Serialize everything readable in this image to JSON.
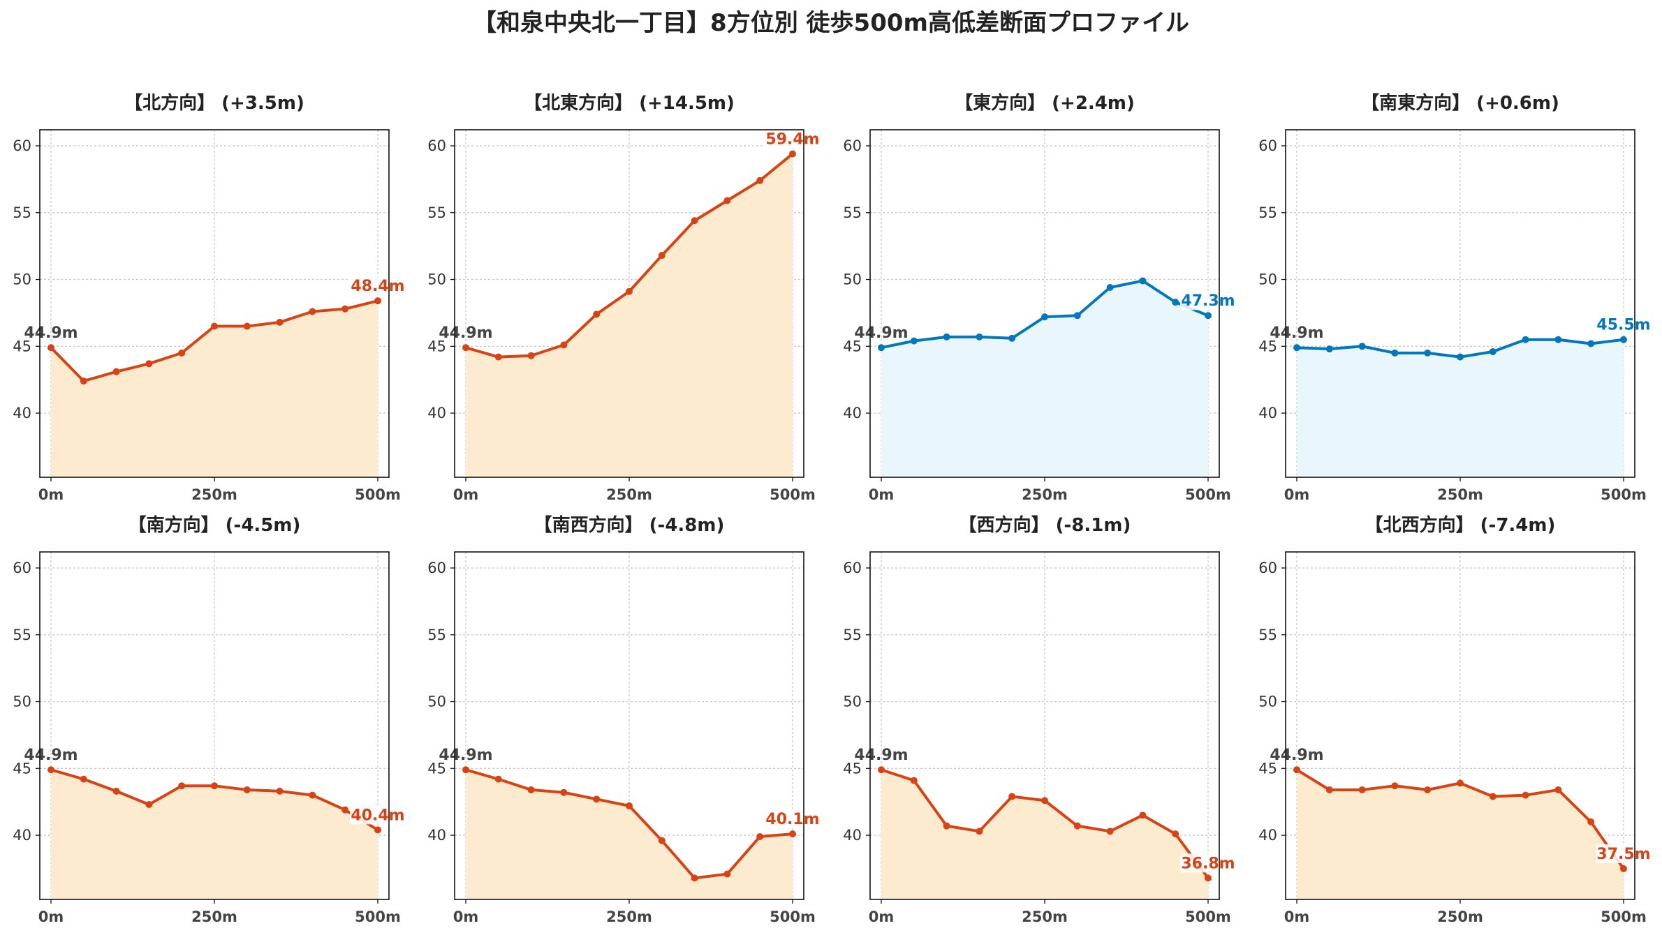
{
  "title": "【和泉中央北一丁目】8方位別 徒歩500m高低差断面プロファイル",
  "colors": {
    "up_line": "#d84315",
    "up_fill": "#fdebd0",
    "down_line": "#0277bd",
    "down_fill": "#e9f6fc",
    "end_label_up": "#d84315",
    "end_label_down": "#0277bd"
  },
  "chart_data": [
    {
      "type": "area",
      "title": "【北方向】 (+3.5m)",
      "x_unit": "m",
      "x": [
        0,
        50,
        100,
        150,
        200,
        250,
        300,
        350,
        400,
        450,
        500
      ],
      "values": [
        44.9,
        42.4,
        43.1,
        43.7,
        44.5,
        46.5,
        46.5,
        46.8,
        47.6,
        47.8,
        48.4
      ],
      "start_label": "44.9m",
      "end_label": "48.4m",
      "palette": "up",
      "x_ticks": [
        "0m",
        "250m",
        "500m"
      ],
      "y_ticks": [
        "40",
        "45",
        "50",
        "55",
        "60"
      ],
      "ylim": [
        35.2,
        61.2
      ],
      "grid": true
    },
    {
      "type": "area",
      "title": "【北東方向】 (+14.5m)",
      "x_unit": "m",
      "x": [
        0,
        50,
        100,
        150,
        200,
        250,
        300,
        350,
        400,
        450,
        500
      ],
      "values": [
        44.9,
        44.2,
        44.3,
        45.1,
        47.4,
        49.1,
        51.8,
        54.4,
        55.9,
        57.4,
        59.4
      ],
      "start_label": "44.9m",
      "end_label": "59.4m",
      "palette": "up",
      "x_ticks": [
        "0m",
        "250m",
        "500m"
      ],
      "y_ticks": [
        "40",
        "45",
        "50",
        "55",
        "60"
      ],
      "ylim": [
        35.2,
        61.2
      ],
      "grid": true
    },
    {
      "type": "area",
      "title": "【東方向】 (+2.4m)",
      "x_unit": "m",
      "x": [
        0,
        50,
        100,
        150,
        200,
        250,
        300,
        350,
        400,
        450,
        500
      ],
      "values": [
        44.9,
        45.4,
        45.7,
        45.7,
        45.6,
        47.2,
        47.3,
        49.4,
        49.9,
        48.3,
        47.3
      ],
      "start_label": "44.9m",
      "end_label": "47.3m",
      "palette": "down",
      "x_ticks": [
        "0m",
        "250m",
        "500m"
      ],
      "y_ticks": [
        "40",
        "45",
        "50",
        "55",
        "60"
      ],
      "ylim": [
        35.2,
        61.2
      ],
      "grid": true
    },
    {
      "type": "area",
      "title": "【南東方向】 (+0.6m)",
      "x_unit": "m",
      "x": [
        0,
        50,
        100,
        150,
        200,
        250,
        300,
        350,
        400,
        450,
        500
      ],
      "values": [
        44.9,
        44.8,
        45.0,
        44.5,
        44.5,
        44.2,
        44.6,
        45.5,
        45.5,
        45.2,
        45.5
      ],
      "start_label": "44.9m",
      "end_label": "45.5m",
      "palette": "down",
      "x_ticks": [
        "0m",
        "250m",
        "500m"
      ],
      "y_ticks": [
        "40",
        "45",
        "50",
        "55",
        "60"
      ],
      "ylim": [
        35.2,
        61.2
      ],
      "grid": true
    },
    {
      "type": "area",
      "title": "【南方向】 (-4.5m)",
      "x_unit": "m",
      "x": [
        0,
        50,
        100,
        150,
        200,
        250,
        300,
        350,
        400,
        450,
        500
      ],
      "values": [
        44.9,
        44.2,
        43.3,
        42.3,
        43.7,
        43.7,
        43.4,
        43.3,
        43.0,
        41.9,
        40.4
      ],
      "start_label": "44.9m",
      "end_label": "40.4m",
      "palette": "up",
      "x_ticks": [
        "0m",
        "250m",
        "500m"
      ],
      "y_ticks": [
        "40",
        "45",
        "50",
        "55",
        "60"
      ],
      "ylim": [
        35.2,
        61.2
      ],
      "grid": true
    },
    {
      "type": "area",
      "title": "【南西方向】 (-4.8m)",
      "x_unit": "m",
      "x": [
        0,
        50,
        100,
        150,
        200,
        250,
        300,
        350,
        400,
        450,
        500
      ],
      "values": [
        44.9,
        44.2,
        43.4,
        43.2,
        42.7,
        42.2,
        39.6,
        36.8,
        37.1,
        39.9,
        40.1
      ],
      "start_label": "44.9m",
      "end_label": "40.1m",
      "palette": "up",
      "x_ticks": [
        "0m",
        "250m",
        "500m"
      ],
      "y_ticks": [
        "40",
        "45",
        "50",
        "55",
        "60"
      ],
      "ylim": [
        35.2,
        61.2
      ],
      "grid": true
    },
    {
      "type": "area",
      "title": "【西方向】 (-8.1m)",
      "x_unit": "m",
      "x": [
        0,
        50,
        100,
        150,
        200,
        250,
        300,
        350,
        400,
        450,
        500
      ],
      "values": [
        44.9,
        44.1,
        40.7,
        40.3,
        42.9,
        42.6,
        40.7,
        40.3,
        41.5,
        40.1,
        36.8
      ],
      "start_label": "44.9m",
      "end_label": "36.8m",
      "palette": "up",
      "x_ticks": [
        "0m",
        "250m",
        "500m"
      ],
      "y_ticks": [
        "40",
        "45",
        "50",
        "55",
        "60"
      ],
      "ylim": [
        35.2,
        61.2
      ],
      "grid": true
    },
    {
      "type": "area",
      "title": "【北西方向】 (-7.4m)",
      "x_unit": "m",
      "x": [
        0,
        50,
        100,
        150,
        200,
        250,
        300,
        350,
        400,
        450,
        500
      ],
      "values": [
        44.9,
        43.4,
        43.4,
        43.7,
        43.4,
        43.9,
        42.9,
        43.0,
        43.4,
        41.0,
        37.5
      ],
      "start_label": "44.9m",
      "end_label": "37.5m",
      "palette": "up",
      "x_ticks": [
        "0m",
        "250m",
        "500m"
      ],
      "y_ticks": [
        "40",
        "45",
        "50",
        "55",
        "60"
      ],
      "ylim": [
        35.2,
        61.2
      ],
      "grid": true
    }
  ]
}
